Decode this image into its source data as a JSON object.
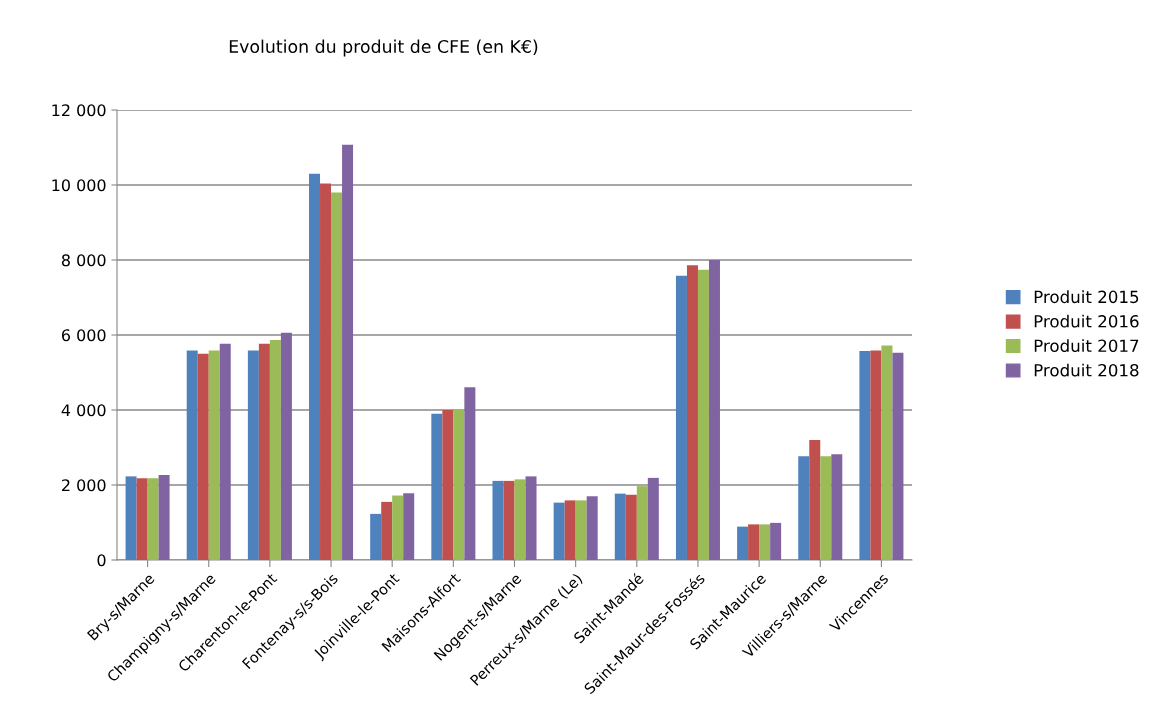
{
  "chart_data": {
    "type": "bar",
    "title": "Evolution du produit de CFE (en K€)",
    "categories": [
      "Bry-s/Marne",
      "Champigny-s/Marne",
      "Charenton-le-Pont",
      "Fontenay-s/s-Bois",
      "Joinville-le-Pont",
      "Maisons-Alfort",
      "Nogent-s/Marne",
      "Perreux-s/Marne (Le)",
      "Saint-Mandé",
      "Saint-Maur-des-Fossés",
      "Saint-Maurice",
      "Villiers-s/Marne",
      "Vincennes"
    ],
    "series": [
      {
        "name": "Produit 2015",
        "color": "#4f81bd",
        "values": [
          2230,
          5590,
          5590,
          10300,
          1230,
          3900,
          2110,
          1530,
          1770,
          7580,
          890,
          2770,
          5570
        ]
      },
      {
        "name": "Produit 2016",
        "color": "#c0504d",
        "values": [
          2180,
          5500,
          5770,
          10040,
          1550,
          4000,
          2110,
          1590,
          1740,
          7860,
          950,
          3200,
          5590
        ]
      },
      {
        "name": "Produit 2017",
        "color": "#9bbb59",
        "values": [
          2180,
          5590,
          5870,
          9800,
          1720,
          4000,
          2150,
          1590,
          1970,
          7740,
          950,
          2770,
          5720
        ]
      },
      {
        "name": "Produit 2018",
        "color": "#8064a2",
        "values": [
          2270,
          5770,
          6060,
          11070,
          1780,
          4610,
          2230,
          1700,
          2190,
          8000,
          990,
          2820,
          5530
        ]
      }
    ],
    "ylim": [
      0,
      12000
    ],
    "yticks": [
      {
        "value": 0,
        "label": "0"
      },
      {
        "value": 2000,
        "label": "2 000"
      },
      {
        "value": 4000,
        "label": "4 000"
      },
      {
        "value": 6000,
        "label": "6 000"
      },
      {
        "value": 8000,
        "label": "8 000"
      },
      {
        "value": 10000,
        "label": "10 000"
      },
      {
        "value": 12000,
        "label": "12 000"
      }
    ],
    "grid": "y",
    "legend": "right"
  }
}
